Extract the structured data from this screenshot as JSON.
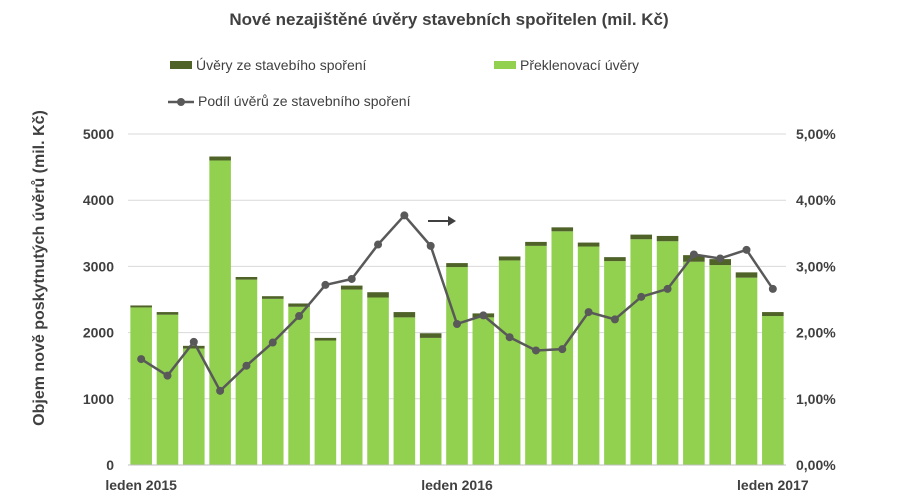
{
  "chart_data": {
    "type": "bar",
    "title": "Nové nezajištěné úvěry stavebních spořitelen (mil. Kč)",
    "ylabel": "Objem nově poskytnutých úvěrů (mil. Kč)",
    "ylim": [
      0,
      5000
    ],
    "y2lim": [
      0,
      5
    ],
    "y_ticks": [
      "0",
      "1000",
      "2000",
      "3000",
      "4000",
      "5000"
    ],
    "y2_ticks": [
      "0,00%",
      "1,00%",
      "2,00%",
      "3,00%",
      "4,00%",
      "5,00%"
    ],
    "x_labels": [
      "leden 2015",
      "leden 2016",
      "leden 2017"
    ],
    "x_label_months": [
      0,
      12,
      24
    ],
    "months": 25,
    "stacked": true,
    "series": [
      {
        "name": "Překlenovací úvěry",
        "kind": "bar",
        "color": "#92d050",
        "values": [
          2380,
          2270,
          1760,
          4600,
          2800,
          2510,
          2390,
          1880,
          2650,
          2530,
          2230,
          1920,
          2990,
          2230,
          3090,
          3310,
          3530,
          3300,
          3080,
          3410,
          3380,
          3070,
          3020,
          2830,
          2250
        ]
      },
      {
        "name": "Úvěry ze stavebího spoření",
        "kind": "bar",
        "color": "#4f6228",
        "values": [
          30,
          40,
          40,
          60,
          40,
          40,
          50,
          40,
          60,
          80,
          80,
          70,
          60,
          60,
          60,
          60,
          60,
          60,
          60,
          70,
          80,
          100,
          90,
          80,
          60
        ]
      },
      {
        "name": "Podíl úvěrů ze stavebního spoření",
        "kind": "line",
        "axis": "right",
        "unit": "%",
        "color": "#595959",
        "values": [
          1.6,
          1.35,
          1.86,
          1.12,
          1.5,
          1.85,
          2.25,
          2.72,
          2.81,
          3.33,
          3.77,
          3.31,
          2.13,
          2.26,
          1.93,
          1.73,
          1.75,
          2.31,
          2.2,
          2.54,
          2.66,
          3.18,
          3.12,
          3.25,
          2.66
        ]
      }
    ],
    "legend_position": "top",
    "grid": "horizontal",
    "annotation": "arrow pointing right"
  }
}
